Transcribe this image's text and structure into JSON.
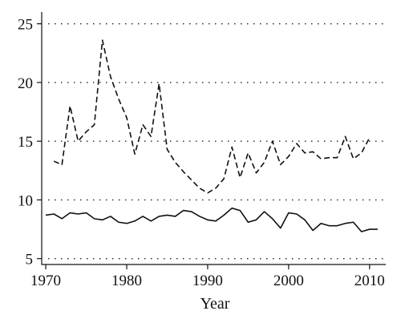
{
  "chart_data": {
    "type": "line",
    "title": "",
    "xlabel": "Year",
    "ylabel": "",
    "xlim": [
      1969.5,
      2012
    ],
    "ylim": [
      4.5,
      26
    ],
    "xticks": [
      1970,
      1980,
      1990,
      2000,
      2010
    ],
    "yticks": [
      5,
      10,
      15,
      20,
      25
    ],
    "grid": "horizontal-dotted",
    "legend": "none",
    "colors": {
      "axis": "#111111",
      "series": "#111111"
    },
    "series": [
      {
        "style": "dashed",
        "x": [
          1971,
          1972,
          1973,
          1974,
          1975,
          1976,
          1977,
          1978,
          1979,
          1980,
          1981,
          1982,
          1983,
          1984,
          1985,
          1986,
          1987,
          1988,
          1989,
          1990,
          1991,
          1992,
          1993,
          1994,
          1995,
          1996,
          1997,
          1998,
          1999,
          2000,
          2001,
          2002,
          2003,
          2004,
          2005,
          2006,
          2007,
          2008,
          2009,
          2010
        ],
        "y": [
          13.3,
          13.0,
          18.0,
          15.0,
          15.8,
          16.4,
          23.6,
          20.5,
          18.6,
          17.0,
          13.9,
          16.4,
          15.4,
          19.9,
          14.3,
          13.2,
          12.4,
          11.7,
          11.0,
          10.6,
          11.0,
          11.8,
          14.5,
          11.9,
          14.0,
          12.3,
          13.2,
          15.0,
          13.0,
          13.7,
          14.8,
          14.0,
          14.1,
          13.5,
          13.6,
          13.6,
          15.4,
          13.5,
          14.0,
          15.3
        ]
      },
      {
        "style": "solid",
        "x": [
          1970,
          1971,
          1972,
          1973,
          1974,
          1975,
          1976,
          1977,
          1978,
          1979,
          1980,
          1981,
          1982,
          1983,
          1984,
          1985,
          1986,
          1987,
          1988,
          1989,
          1990,
          1991,
          1992,
          1993,
          1994,
          1995,
          1996,
          1997,
          1998,
          1999,
          2000,
          2001,
          2002,
          2003,
          2004,
          2005,
          2006,
          2007,
          2008,
          2009,
          2010,
          2011
        ],
        "y": [
          8.7,
          8.8,
          8.4,
          8.9,
          8.8,
          8.9,
          8.4,
          8.3,
          8.6,
          8.1,
          8.0,
          8.2,
          8.6,
          8.2,
          8.6,
          8.7,
          8.6,
          9.1,
          9.0,
          8.6,
          8.3,
          8.2,
          8.7,
          9.3,
          9.1,
          8.1,
          8.3,
          9.0,
          8.4,
          7.6,
          8.9,
          8.8,
          8.3,
          7.4,
          8.0,
          7.8,
          7.8,
          8.0,
          8.1,
          7.3,
          7.5,
          7.5
        ]
      }
    ]
  }
}
